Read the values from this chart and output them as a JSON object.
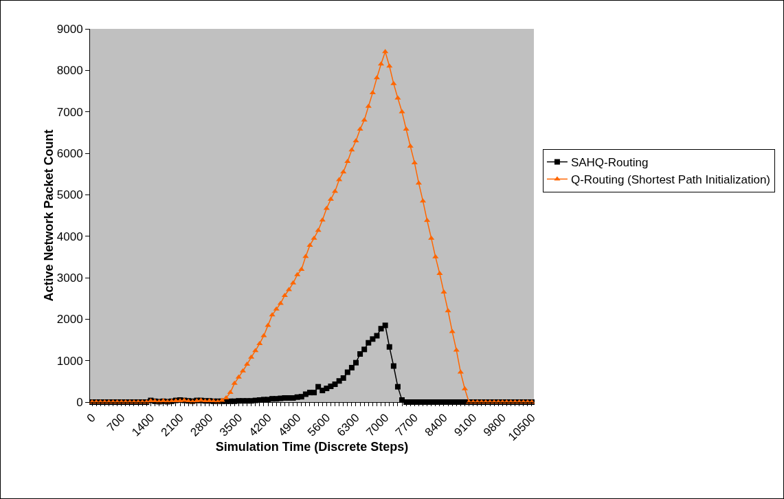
{
  "chart_data": {
    "type": "line",
    "xlabel": "Simulation Time (Discrete Steps)",
    "ylabel": "Active Network Packet Count",
    "categories": [
      "0",
      null,
      null,
      null,
      null,
      null,
      null,
      "700",
      null,
      null,
      null,
      null,
      null,
      null,
      "1400",
      null,
      null,
      null,
      null,
      null,
      null,
      "2100",
      null,
      null,
      null,
      null,
      null,
      null,
      "2800",
      null,
      null,
      null,
      null,
      null,
      null,
      "3500",
      null,
      null,
      null,
      null,
      null,
      null,
      "4200",
      null,
      null,
      null,
      null,
      null,
      null,
      "4900",
      null,
      null,
      null,
      null,
      null,
      null,
      "5600",
      null,
      null,
      null,
      null,
      null,
      null,
      "6300",
      null,
      null,
      null,
      null,
      null,
      null,
      "7000",
      null,
      null,
      null,
      null,
      null,
      null,
      "7700",
      null,
      null,
      null,
      null,
      null,
      null,
      "8400",
      null,
      null,
      null,
      null,
      null,
      null,
      "9100",
      null,
      null,
      null,
      null,
      null,
      null,
      "9800",
      null,
      null,
      null,
      null,
      null,
      null,
      "10500"
    ],
    "series": [
      {
        "name": "SAHQ-Routing",
        "color": "#000000",
        "marker": "square",
        "values": [
          0,
          0,
          0,
          0,
          0,
          0,
          0,
          0,
          0,
          0,
          0,
          0,
          0,
          0,
          40,
          20,
          10,
          20,
          10,
          20,
          40,
          50,
          40,
          30,
          20,
          40,
          40,
          30,
          30,
          20,
          20,
          20,
          20,
          20,
          20,
          30,
          30,
          30,
          30,
          40,
          50,
          60,
          60,
          80,
          80,
          90,
          100,
          100,
          100,
          120,
          130,
          190,
          230,
          230,
          370,
          280,
          330,
          380,
          430,
          510,
          580,
          720,
          830,
          950,
          1160,
          1270,
          1430,
          1520,
          1600,
          1770,
          1850,
          1330,
          870,
          370,
          50,
          0,
          0,
          0,
          0,
          0,
          0,
          0,
          0,
          0,
          0,
          0,
          0,
          0,
          0,
          0,
          0,
          0,
          0,
          0,
          0,
          0,
          0,
          0,
          0,
          0,
          0,
          0,
          0,
          0,
          0,
          0
        ]
      },
      {
        "name": "Q-Routing (Shortest Path Initialization)",
        "color": "#ff6600",
        "marker": "triangle",
        "values": [
          0,
          0,
          0,
          0,
          0,
          0,
          0,
          0,
          0,
          0,
          0,
          0,
          0,
          0,
          30,
          20,
          10,
          30,
          10,
          20,
          30,
          30,
          40,
          20,
          10,
          30,
          40,
          20,
          30,
          20,
          10,
          40,
          100,
          230,
          450,
          600,
          750,
          910,
          1080,
          1240,
          1410,
          1600,
          1850,
          2100,
          2240,
          2380,
          2570,
          2710,
          2870,
          3070,
          3200,
          3510,
          3780,
          3950,
          4140,
          4390,
          4670,
          4890,
          5080,
          5360,
          5550,
          5800,
          6080,
          6300,
          6580,
          6800,
          7130,
          7460,
          7820,
          8150,
          8450,
          8100,
          7680,
          7330,
          7000,
          6580,
          6170,
          5770,
          5280,
          4850,
          4380,
          3950,
          3500,
          3100,
          2650,
          2200,
          1700,
          1250,
          720,
          320,
          0,
          0,
          0,
          0,
          0,
          0,
          0,
          0,
          0,
          0,
          0,
          0,
          0,
          0,
          0,
          0
        ]
      }
    ],
    "ylim": [
      0,
      9000
    ],
    "yticks": [
      0,
      1000,
      2000,
      3000,
      4000,
      5000,
      6000,
      7000,
      8000,
      9000
    ],
    "grid": false,
    "legend": "right",
    "line_style": "solid"
  }
}
